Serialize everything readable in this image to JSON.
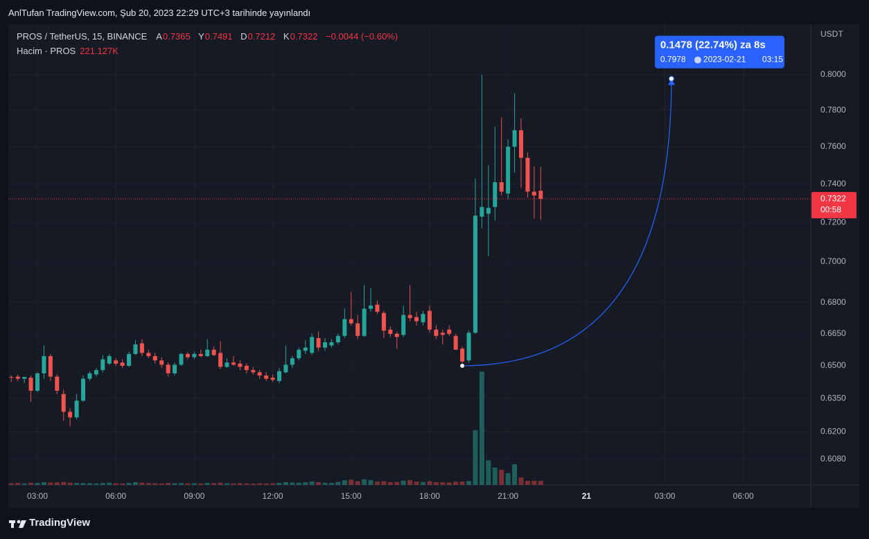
{
  "header": "AnlTufan TradingView.com, Şub 20, 2023 22:29 UTC+3 tarihinde yayınlandı",
  "footer": "TradingView",
  "chart_data": {
    "type": "candlestick",
    "symbol": "PROS / TetherUS, 15, BINANCE",
    "legend_labels": {
      "open": "A",
      "high": "Y",
      "low": "D",
      "close": "K"
    },
    "change": "−0.0044 (−0.60%)",
    "volume_name": "Hacim · PROS",
    "volume_last_label": "221.127K",
    "y_unit": "USDT",
    "up_color": "#26a69a",
    "down_color": "#ef5350",
    "volume_up_color": "#1f5f5b",
    "volume_down_color": "#7a2f35",
    "log_scale": true,
    "grid": true,
    "ylim": [
      0.597,
      0.8294
    ],
    "yticks": [
      {
        "value": 0.608,
        "label": "0.6080"
      },
      {
        "value": 0.62,
        "label": "0.6200"
      },
      {
        "value": 0.635,
        "label": "0.6350"
      },
      {
        "value": 0.65,
        "label": "0.6500"
      },
      {
        "value": 0.665,
        "label": "0.6650"
      },
      {
        "value": 0.68,
        "label": "0.6800"
      },
      {
        "value": 0.7,
        "label": "0.7000"
      },
      {
        "value": 0.72,
        "label": "0.7200"
      },
      {
        "value": 0.74,
        "label": "0.7400"
      },
      {
        "value": 0.76,
        "label": "0.7600"
      },
      {
        "value": 0.78,
        "label": "0.7800"
      },
      {
        "value": 0.8,
        "label": "0.8000"
      }
    ],
    "xlim": [
      1.887,
      32.58
    ],
    "xticks": [
      {
        "value": 3,
        "label": "03:00"
      },
      {
        "value": 6,
        "label": "06:00"
      },
      {
        "value": 9,
        "label": "09:00"
      },
      {
        "value": 12,
        "label": "12:00"
      },
      {
        "value": 15,
        "label": "15:00"
      },
      {
        "value": 18,
        "label": "18:00"
      },
      {
        "value": 21,
        "label": "21:00"
      },
      {
        "value": 24,
        "label": "21"
      },
      {
        "value": 27,
        "label": "03:00"
      },
      {
        "value": 30,
        "label": "06:00"
      }
    ],
    "volume_ylim": [
      0,
      24400000
    ],
    "x": [
      2,
      2.25,
      2.5,
      2.75,
      3,
      3.25,
      3.5,
      3.75,
      4,
      4.25,
      4.5,
      4.75,
      5,
      5.25,
      5.5,
      5.75,
      6,
      6.25,
      6.5,
      6.75,
      7,
      7.25,
      7.5,
      7.75,
      8,
      8.25,
      8.5,
      8.75,
      9,
      9.25,
      9.5,
      9.75,
      10,
      10.25,
      10.5,
      10.75,
      11,
      11.25,
      11.5,
      11.75,
      12,
      12.25,
      12.5,
      12.75,
      13,
      13.25,
      13.5,
      13.75,
      14,
      14.25,
      14.5,
      14.75,
      15,
      15.25,
      15.5,
      15.75,
      16,
      16.25,
      16.5,
      16.75,
      17,
      17.25,
      17.5,
      17.75,
      18,
      18.25,
      18.5,
      18.75,
      19,
      19.25,
      19.5,
      19.75,
      20,
      20.25,
      20.5,
      20.75,
      21,
      21.25,
      21.5,
      21.75,
      22,
      22.25
    ],
    "open": [
      0.6448,
      0.645,
      0.644,
      0.6445,
      0.6385,
      0.6465,
      0.6545,
      0.645,
      0.637,
      0.629,
      0.6265,
      0.634,
      0.644,
      0.646,
      0.648,
      0.651,
      0.6525,
      0.6515,
      0.65,
      0.6555,
      0.6605,
      0.656,
      0.6545,
      0.6525,
      0.6505,
      0.6465,
      0.6505,
      0.6555,
      0.654,
      0.6555,
      0.6545,
      0.6575,
      0.656,
      0.6495,
      0.6515,
      0.651,
      0.65,
      0.648,
      0.647,
      0.6455,
      0.6445,
      0.643,
      0.647,
      0.6505,
      0.6535,
      0.657,
      0.656,
      0.663,
      0.6585,
      0.6595,
      0.661,
      0.664,
      0.672,
      0.67,
      0.664,
      0.677,
      0.679,
      0.675,
      0.667,
      0.665,
      0.6645,
      0.674,
      0.673,
      0.6705,
      0.676,
      0.667,
      0.6655,
      0.667,
      0.664,
      0.658,
      0.6525,
      0.6655,
      0.723,
      0.7245,
      0.728,
      0.741,
      0.735,
      0.76,
      0.769,
      0.754,
      0.736,
      0.7365
    ],
    "high": [
      0.6455,
      0.646,
      0.645,
      0.6455,
      0.647,
      0.6595,
      0.6555,
      0.646,
      0.639,
      0.6305,
      0.637,
      0.6455,
      0.6475,
      0.649,
      0.655,
      0.6555,
      0.6535,
      0.653,
      0.6565,
      0.662,
      0.6625,
      0.6575,
      0.656,
      0.654,
      0.6515,
      0.6515,
      0.656,
      0.6565,
      0.6565,
      0.6575,
      0.6625,
      0.659,
      0.6615,
      0.6535,
      0.6545,
      0.6525,
      0.651,
      0.6495,
      0.648,
      0.647,
      0.646,
      0.649,
      0.6595,
      0.6545,
      0.6585,
      0.662,
      0.665,
      0.666,
      0.663,
      0.6625,
      0.665,
      0.677,
      0.685,
      0.674,
      0.6885,
      0.687,
      0.681,
      0.676,
      0.6685,
      0.666,
      0.6785,
      0.6885,
      0.6755,
      0.676,
      0.6785,
      0.669,
      0.667,
      0.669,
      0.665,
      0.659,
      0.6665,
      0.743,
      0.8,
      0.75,
      0.771,
      0.776,
      0.764,
      0.7895,
      0.7755,
      0.757,
      0.7495,
      0.7491
    ],
    "low": [
      0.6425,
      0.643,
      0.642,
      0.6335,
      0.638,
      0.644,
      0.643,
      0.637,
      0.625,
      0.6225,
      0.6255,
      0.6335,
      0.643,
      0.645,
      0.647,
      0.6505,
      0.65,
      0.649,
      0.6495,
      0.655,
      0.6545,
      0.6535,
      0.651,
      0.649,
      0.645,
      0.6455,
      0.65,
      0.653,
      0.653,
      0.654,
      0.654,
      0.6545,
      0.6485,
      0.649,
      0.65,
      0.648,
      0.6465,
      0.646,
      0.644,
      0.643,
      0.6425,
      0.642,
      0.6465,
      0.649,
      0.6525,
      0.6555,
      0.655,
      0.657,
      0.657,
      0.6585,
      0.66,
      0.663,
      0.669,
      0.6625,
      0.6635,
      0.6755,
      0.6745,
      0.663,
      0.6635,
      0.658,
      0.6635,
      0.671,
      0.669,
      0.669,
      0.6655,
      0.6625,
      0.66,
      0.664,
      0.6575,
      0.65,
      0.6515,
      0.665,
      0.717,
      0.703,
      0.721,
      0.734,
      0.732,
      0.746,
      0.738,
      0.733,
      0.722,
      0.7212
    ],
    "close": [
      0.6445,
      0.644,
      0.6448,
      0.6385,
      0.6465,
      0.6545,
      0.645,
      0.6385,
      0.629,
      0.6265,
      0.634,
      0.644,
      0.6465,
      0.648,
      0.653,
      0.6545,
      0.651,
      0.65,
      0.6555,
      0.66,
      0.656,
      0.6545,
      0.6525,
      0.6505,
      0.6465,
      0.6505,
      0.6555,
      0.654,
      0.6555,
      0.6545,
      0.6575,
      0.655,
      0.6495,
      0.6515,
      0.6505,
      0.6495,
      0.648,
      0.647,
      0.6455,
      0.644,
      0.6435,
      0.6475,
      0.6505,
      0.6535,
      0.6575,
      0.6585,
      0.6635,
      0.6585,
      0.661,
      0.661,
      0.664,
      0.672,
      0.67,
      0.664,
      0.677,
      0.6785,
      0.6755,
      0.6665,
      0.665,
      0.6635,
      0.674,
      0.6725,
      0.671,
      0.6745,
      0.667,
      0.664,
      0.6645,
      0.665,
      0.6575,
      0.652,
      0.6655,
      0.7235,
      0.728,
      0.7275,
      0.741,
      0.736,
      0.76,
      0.769,
      0.754,
      0.736,
      0.734,
      0.7322
    ],
    "volume": [
      90000,
      110000,
      80000,
      120000,
      100000,
      150000,
      130000,
      140000,
      160000,
      120000,
      110000,
      100000,
      90000,
      80000,
      100000,
      120000,
      90000,
      80000,
      110000,
      150000,
      120000,
      100000,
      90000,
      80000,
      110000,
      90000,
      100000,
      80000,
      90000,
      80000,
      110000,
      100000,
      120000,
      90000,
      80000,
      90000,
      80000,
      70000,
      90000,
      80000,
      90000,
      110000,
      150000,
      130000,
      120000,
      140000,
      180000,
      150000,
      120000,
      110000,
      160000,
      250000,
      280000,
      200000,
      300000,
      260000,
      180000,
      200000,
      150000,
      160000,
      230000,
      260000,
      180000,
      160000,
      200000,
      150000,
      140000,
      130000,
      170000,
      180000,
      210000,
      2900000,
      6000000,
      1300000,
      920000,
      810000,
      625000,
      1100000,
      400000,
      220000,
      220000,
      221127
    ],
    "price_line": {
      "color": "#f23645",
      "countdown": "00:58"
    },
    "measure": {
      "color": "#2962ff",
      "start_x": 19.25,
      "start_y": 0.65,
      "end_x": 27.25,
      "end_y": 0.7978,
      "change_label": "0.1478 (22.74%) za 8s",
      "date": "2023-02-21",
      "time": "03:15"
    }
  }
}
